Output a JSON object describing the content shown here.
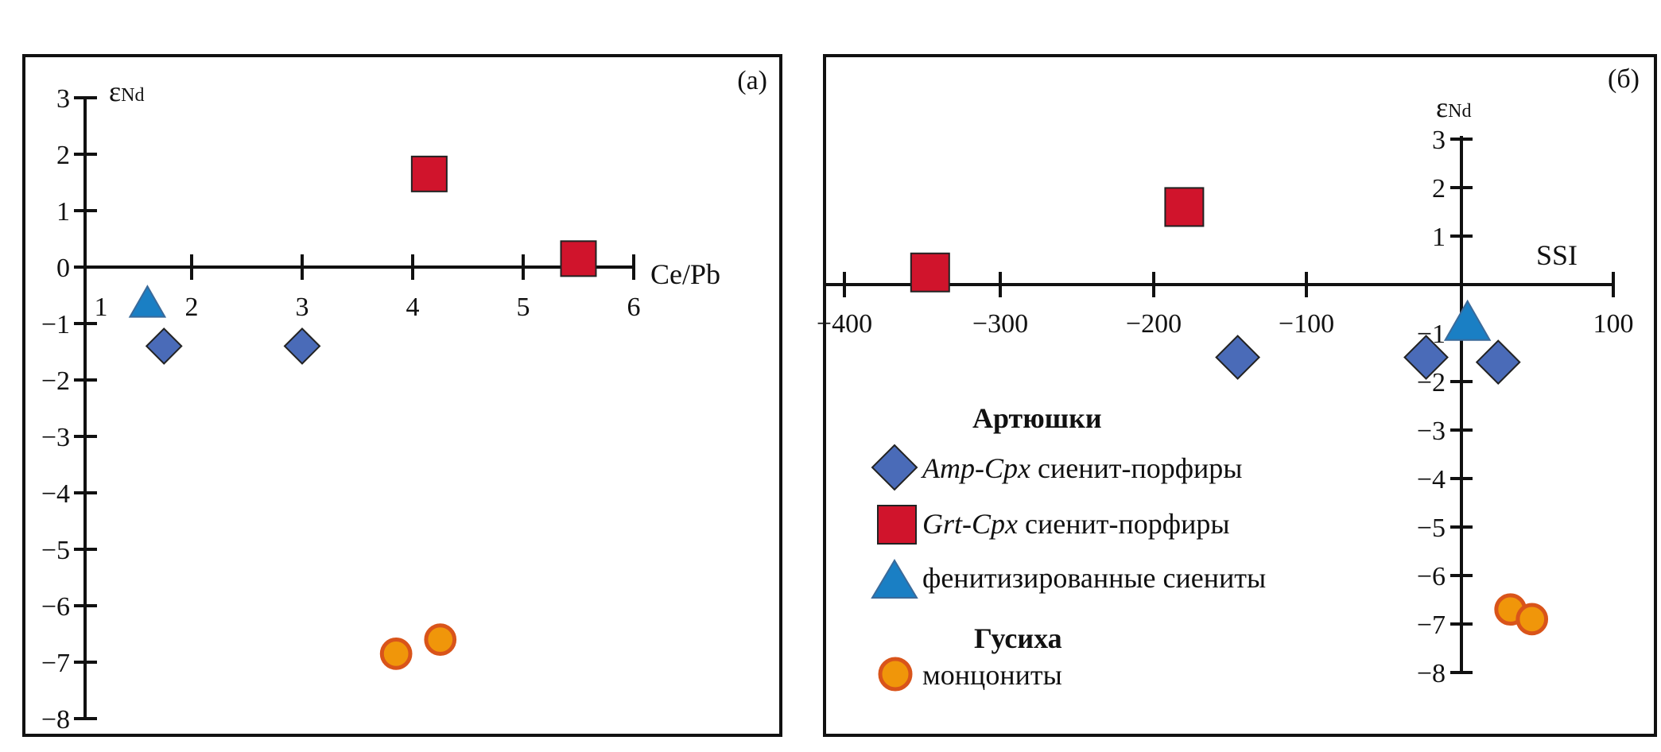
{
  "chart_data": [
    {
      "type": "scatter",
      "panel_label": "(а)",
      "xlabel": "Ce/Pb",
      "ylabel_main": "ε",
      "ylabel_sub": "Nd",
      "xlim": [
        1,
        6
      ],
      "ylim": [
        -8,
        3
      ],
      "x_ticks": [
        "1",
        "2",
        "3",
        "4",
        "5",
        "6"
      ],
      "y_ticks": [
        "3",
        "2",
        "1",
        "0",
        "−1",
        "−2",
        "−3",
        "−4",
        "−5",
        "−6",
        "−7",
        "−8"
      ],
      "series": [
        {
          "key": "amp",
          "points": [
            {
              "x": 1.75,
              "y": -1.4
            },
            {
              "x": 3.0,
              "y": -1.4
            }
          ]
        },
        {
          "key": "grt",
          "points": [
            {
              "x": 4.15,
              "y": 1.65
            },
            {
              "x": 5.5,
              "y": 0.15
            }
          ]
        },
        {
          "key": "fen",
          "points": [
            {
              "x": 1.6,
              "y": -0.65
            }
          ]
        },
        {
          "key": "mon",
          "points": [
            {
              "x": 3.85,
              "y": -6.85
            },
            {
              "x": 4.25,
              "y": -6.6
            }
          ]
        }
      ]
    },
    {
      "type": "scatter",
      "panel_label": "(б)",
      "xlabel": "SSI",
      "ylabel_main": "ε",
      "ylabel_sub": "Nd",
      "xlim": [
        -400,
        100
      ],
      "ylim": [
        -8,
        3
      ],
      "x_ticks": [
        "−400",
        "−300",
        "−200",
        "−100",
        "100"
      ],
      "y_ticks": [
        "3",
        "2",
        "1",
        "−1",
        "−2",
        "−3",
        "−4",
        "−5",
        "−6",
        "−7",
        "−8"
      ],
      "series": [
        {
          "key": "amp",
          "points": [
            {
              "x": -145,
              "y": -1.5
            },
            {
              "x": -22,
              "y": -1.5
            },
            {
              "x": 25,
              "y": -1.6
            }
          ]
        },
        {
          "key": "grt",
          "points": [
            {
              "x": -345,
              "y": 0.25
            },
            {
              "x": -180,
              "y": 1.6
            }
          ]
        },
        {
          "key": "fen",
          "points": [
            {
              "x": 5,
              "y": -0.8
            }
          ]
        },
        {
          "key": "mon",
          "points": [
            {
              "x": 33,
              "y": -6.7
            },
            {
              "x": 47,
              "y": -6.9
            }
          ]
        }
      ]
    }
  ],
  "legend": {
    "group1_title": "Артюшки",
    "group2_title": "Гусиха",
    "items": [
      {
        "key": "amp",
        "italic": "Amp-Cpx",
        "text": " сиенит-порфиры"
      },
      {
        "key": "grt",
        "italic": "Grt-Cpx",
        "text": " сиенит-порфиры"
      },
      {
        "key": "fen",
        "italic": "",
        "text": "фенитизированные сиениты"
      },
      {
        "key": "mon",
        "italic": "",
        "text": "монцониты"
      }
    ]
  },
  "colors": {
    "amp": "#4a6bb8",
    "grt": "#d0142c",
    "fen": "#1a7fc4",
    "mon_fill": "#f0960a",
    "mon_stroke": "#d9541a"
  }
}
